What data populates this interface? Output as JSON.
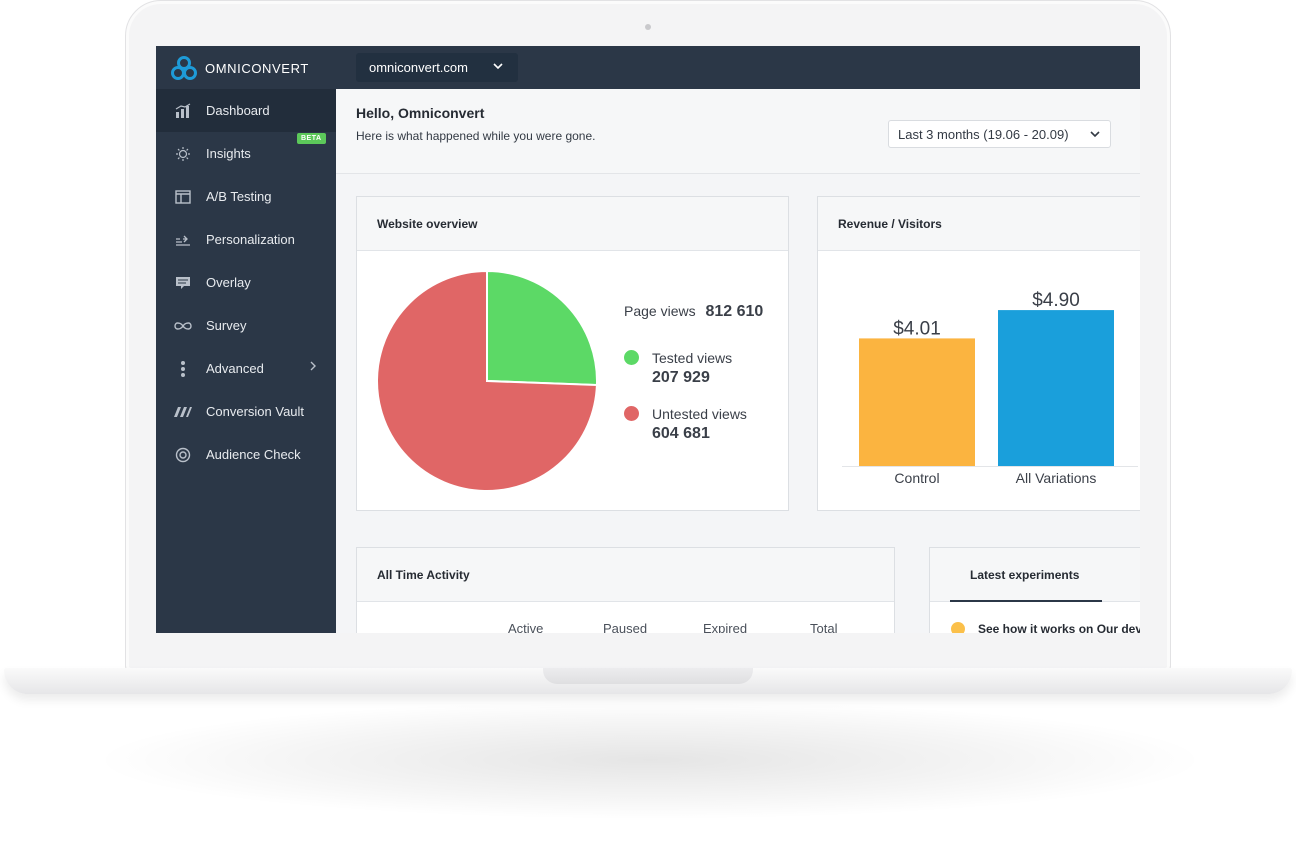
{
  "brand": {
    "name": "OMNICONVERT",
    "color": "#1e9bd8"
  },
  "site_selector": {
    "value": "omniconvert.com"
  },
  "sidebar": {
    "items": [
      {
        "label": "Dashboard",
        "icon": "bar-chart-icon",
        "active": true
      },
      {
        "label": "Insights",
        "icon": "lightbulb-icon",
        "badge": "BETA"
      },
      {
        "label": "A/B Testing",
        "icon": "window-icon"
      },
      {
        "label": "Personalization",
        "icon": "personalization-icon"
      },
      {
        "label": "Overlay",
        "icon": "chat-bubble-icon"
      },
      {
        "label": "Survey",
        "icon": "infinity-icon"
      },
      {
        "label": "Advanced",
        "icon": "more-vertical-icon",
        "has_arrow": true
      },
      {
        "label": "Conversion Vault",
        "icon": "vault-icon"
      },
      {
        "label": "Audience Check",
        "icon": "target-icon"
      }
    ]
  },
  "header": {
    "greeting": "Hello, Omniconvert",
    "subtitle": "Here is what happened while you were gone.",
    "date_range": "Last 3 months (19.06 - 20.09)"
  },
  "website_overview": {
    "title": "Website overview",
    "page_views_label": "Page views",
    "page_views_value": "812 610",
    "tested_label": "Tested views",
    "tested_value": "207 929",
    "untested_label": "Untested views",
    "untested_value": "604 681",
    "colors": {
      "tested": "#5cd966",
      "untested": "#e06666"
    }
  },
  "revenue_visitors": {
    "title": "Revenue / Visitors"
  },
  "all_time_activity": {
    "title": "All Time Activity",
    "columns": [
      "Active",
      "Paused",
      "Expired",
      "Total"
    ]
  },
  "latest_experiments": {
    "title": "Latest experiments",
    "first_item": "See how it works on Our dev"
  },
  "chart_data": [
    {
      "type": "pie",
      "title": "Website overview",
      "categories": [
        "Tested views",
        "Untested views"
      ],
      "values": [
        207929,
        604681
      ],
      "colors": [
        "#5cd966",
        "#e06666"
      ]
    },
    {
      "type": "bar",
      "title": "Revenue / Visitors",
      "categories": [
        "Control",
        "All Variations"
      ],
      "values": [
        4.01,
        4.9
      ],
      "value_labels": [
        "$4.01",
        "$4.90"
      ],
      "colors": [
        "#fbb440",
        "#1a9fdb"
      ],
      "ylim": [
        0,
        5.5
      ]
    }
  ]
}
